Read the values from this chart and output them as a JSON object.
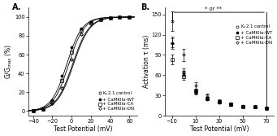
{
  "panel_A": {
    "title": "A.",
    "xlabel": "Test Potential (mV)",
    "ylabel": "G/G$_{max}$ (%)",
    "xlim": [
      -45,
      68
    ],
    "ylim": [
      -5,
      110
    ],
    "xticks": [
      -40,
      -20,
      0,
      20,
      40,
      60
    ],
    "yticks": [
      0,
      20,
      40,
      60,
      80,
      100
    ],
    "series": {
      "control": {
        "label": "K$_v$2.1 control",
        "v50": 2.0,
        "slope": 8.5
      },
      "wt": {
        "label": "+ CaMKIIα-WT",
        "v50": -5.0,
        "slope": 8.0
      },
      "ca": {
        "label": "+ CaMKIIα-CA",
        "v50": -3.0,
        "slope": 8.0
      },
      "dn": {
        "label": "+ CaMKIIα-DN",
        "v50": 1.0,
        "slope": 8.5
      }
    },
    "data_points": {
      "control_x": [
        -40,
        -30,
        -20,
        -10,
        0,
        10,
        20,
        30,
        40,
        50,
        60
      ],
      "control_y": [
        0,
        2,
        8,
        25,
        55,
        82,
        93,
        97,
        99,
        100,
        100
      ],
      "wt_x": [
        -40,
        -30,
        -20,
        -10,
        0,
        10,
        20,
        30,
        40,
        50,
        60
      ],
      "wt_y": [
        0,
        2,
        12,
        38,
        68,
        88,
        95,
        98,
        99,
        100,
        100
      ],
      "ca_x": [
        -40,
        -30,
        -20,
        -10,
        0,
        10,
        20,
        30,
        40,
        50,
        60
      ],
      "ca_y": [
        0,
        2,
        10,
        32,
        63,
        86,
        94,
        97,
        99,
        100,
        100
      ],
      "dn_x": [
        -40,
        -30,
        -20,
        -10,
        0,
        10,
        20,
        30,
        40,
        50,
        60
      ],
      "dn_y": [
        0,
        2,
        8,
        25,
        55,
        82,
        93,
        97,
        99,
        100,
        100
      ]
    }
  },
  "panel_B": {
    "title": "B.",
    "xlabel": "Test Potential (mV)",
    "ylabel": "Activation τ (ms)",
    "xlim": [
      -16,
      76
    ],
    "ylim": [
      0,
      160
    ],
    "xticks": [
      -10,
      10,
      30,
      50,
      70
    ],
    "yticks": [
      0,
      30,
      60,
      90,
      120,
      150
    ],
    "annotation": "* or **",
    "data_points": {
      "control_x": [
        -10,
        0,
        10,
        20,
        30,
        40,
        50,
        60,
        70
      ],
      "control_y": [
        140,
        90,
        45,
        30,
        22,
        18,
        15,
        13,
        12
      ],
      "control_err": [
        14,
        9,
        5,
        3,
        2,
        2,
        1.5,
        1.5,
        1
      ],
      "wt_x": [
        -10,
        0,
        10,
        20,
        30,
        40,
        50,
        60,
        70
      ],
      "wt_y": [
        108,
        63,
        35,
        25,
        20,
        16,
        14,
        13,
        11
      ],
      "wt_err": [
        7,
        4,
        3,
        2,
        2,
        1.5,
        1.5,
        1,
        1
      ],
      "ca_x": [
        -10,
        0,
        10,
        20,
        30,
        40,
        50,
        60,
        70
      ],
      "ca_y": [
        83,
        58,
        36,
        26,
        21,
        17,
        14,
        13,
        11
      ],
      "ca_err": [
        7,
        5,
        3,
        2,
        2,
        1.5,
        1,
        1,
        1
      ],
      "dn_x": [
        -10,
        0,
        10,
        20,
        30,
        40,
        50,
        60,
        70
      ],
      "dn_y": [
        108,
        65,
        37,
        26,
        21,
        17,
        14,
        13,
        11
      ],
      "dn_err": [
        9,
        5,
        3,
        2,
        2,
        1.5,
        1,
        1,
        1
      ]
    }
  },
  "label_font_size": 5.5,
  "tick_font_size": 4.8,
  "legend_font_size": 4.0,
  "marker_size": 2.2,
  "line_width": 0.6,
  "error_cap_size": 1.2,
  "mew": 0.5
}
